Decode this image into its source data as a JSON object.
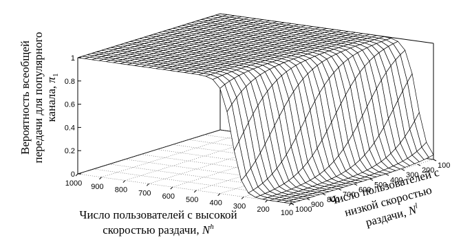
{
  "chart_data": {
    "type": "surface",
    "title": "",
    "zlabel_lines": [
      "Вероятность всеобщей",
      "передачи для популярного",
      "канала, "
    ],
    "zlabel_symbol": "π",
    "zlabel_subscript": "1",
    "xlabel_lines": [
      "Число пользователей с высокой",
      "скоростью раздачи, "
    ],
    "xlabel_symbol": "N",
    "xlabel_superscript": "h",
    "ylabel_lines": [
      "Число пользователей с",
      "низкой скоростью",
      "раздачи, "
    ],
    "ylabel_symbol": "N",
    "ylabel_superscript": "l",
    "x_ticks": [
      1000,
      900,
      800,
      700,
      600,
      500,
      400,
      300,
      200,
      100
    ],
    "y_ticks": [
      1000,
      900,
      800,
      700,
      600,
      500,
      400,
      300,
      200,
      100
    ],
    "z_ticks": [
      "0",
      "0.2",
      "0.4",
      "0.6",
      "0.8",
      "1"
    ],
    "x_range": [
      100,
      1000
    ],
    "y_range": [
      100,
      1000
    ],
    "z_range": [
      0,
      1
    ],
    "grid": true,
    "model": "z = 1 / (1 + exp(-(N_h - 0.2*N_l - 150) / 22))",
    "grid_samples": 31
  }
}
